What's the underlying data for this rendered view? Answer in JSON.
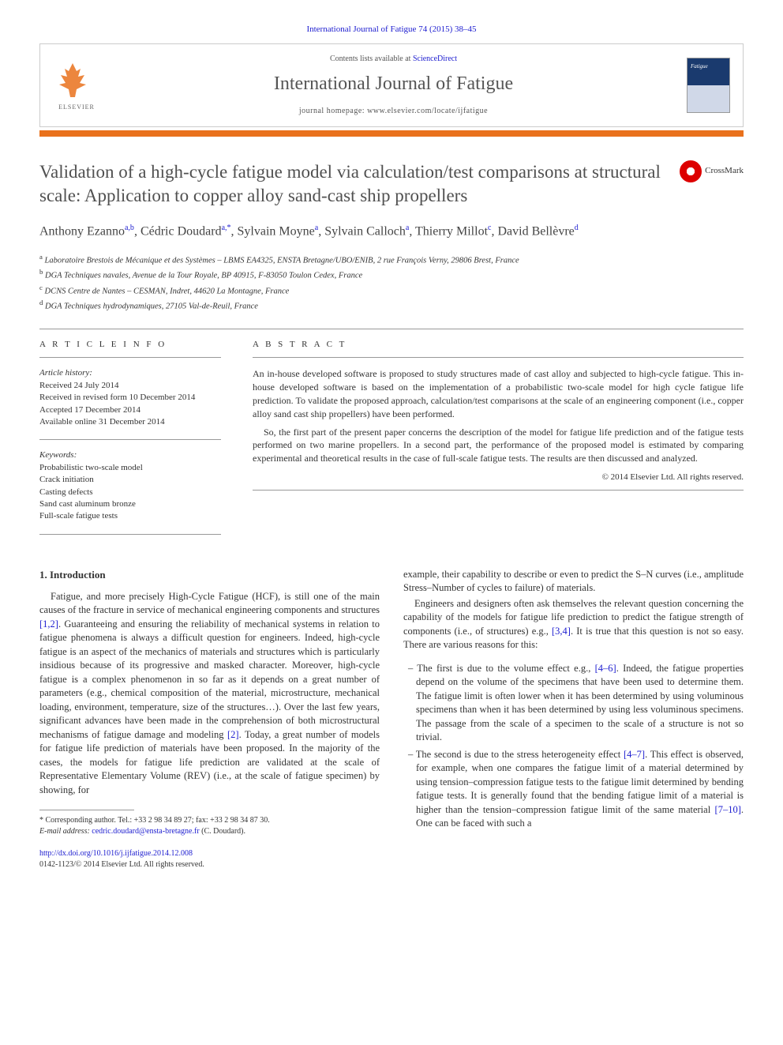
{
  "header": {
    "journal_ref": "International Journal of Fatigue 74 (2015) 38–45",
    "contents_prefix": "Contents lists available at ",
    "contents_link": "ScienceDirect",
    "journal_name": "International Journal of Fatigue",
    "homepage_prefix": "journal homepage: ",
    "homepage_url": "www.elsevier.com/locate/ijfatigue",
    "elsevier_label": "ELSEVIER"
  },
  "crossmark_label": "CrossMark",
  "title": "Validation of a high-cycle fatigue model via calculation/test comparisons at structural scale: Application to copper alloy sand-cast ship propellers",
  "authors_html": "Anthony Ezanno",
  "authors": [
    {
      "name": "Anthony Ezanno",
      "sup": "a,b"
    },
    {
      "name": "Cédric Doudard",
      "sup": "a,*"
    },
    {
      "name": "Sylvain Moyne",
      "sup": "a"
    },
    {
      "name": "Sylvain Calloch",
      "sup": "a"
    },
    {
      "name": "Thierry Millot",
      "sup": "c"
    },
    {
      "name": "David Bellèvre",
      "sup": "d"
    }
  ],
  "affiliations": {
    "a": "Laboratoire Brestois de Mécanique et des Systèmes – LBMS EA4325, ENSTA Bretagne/UBO/ENIB, 2 rue François Verny, 29806 Brest, France",
    "b": "DGA Techniques navales, Avenue de la Tour Royale, BP 40915, F-83050 Toulon Cedex, France",
    "c": "DCNS Centre de Nantes – CESMAN, Indret, 44620 La Montagne, France",
    "d": "DGA Techniques hydrodynamiques, 27105 Val-de-Reuil, France"
  },
  "info": {
    "header": "A R T I C L E   I N F O",
    "history_label": "Article history:",
    "received": "Received 24 July 2014",
    "revised": "Received in revised form 10 December 2014",
    "accepted": "Accepted 17 December 2014",
    "online": "Available online 31 December 2014",
    "keywords_label": "Keywords:",
    "keywords": [
      "Probabilistic two-scale model",
      "Crack initiation",
      "Casting defects",
      "Sand cast aluminum bronze",
      "Full-scale fatigue tests"
    ]
  },
  "abstract": {
    "header": "A B S T R A C T",
    "p1": "An in-house developed software is proposed to study structures made of cast alloy and subjected to high-cycle fatigue. This in-house developed software is based on the implementation of a probabilistic two-scale model for high cycle fatigue life prediction. To validate the proposed approach, calculation/test comparisons at the scale of an engineering component (i.e., copper alloy sand cast ship propellers) have been performed.",
    "p2": "So, the first part of the present paper concerns the description of the model for fatigue life prediction and of the fatigue tests performed on two marine propellers. In a second part, the performance of the proposed model is estimated by comparing experimental and theoretical results in the case of full-scale fatigue tests. The results are then discussed and analyzed.",
    "copyright": "© 2014 Elsevier Ltd. All rights reserved."
  },
  "body": {
    "section1_head": "1. Introduction",
    "col1_p1a": "Fatigue, and more precisely High-Cycle Fatigue (HCF), is still one of the main causes of the fracture in service of mechanical engineering components and structures ",
    "ref12": "[1,2]",
    "col1_p1b": ". Guaranteeing and ensuring the reliability of mechanical systems in relation to fatigue phenomena is always a difficult question for engineers. Indeed, high-cycle fatigue is an aspect of the mechanics of materials and structures which is particularly insidious because of its progressive and masked character. Moreover, high-cycle fatigue is a complex phenomenon in so far as it depends on a great number of parameters (e.g., chemical composition of the material, microstructure, mechanical loading, environment, temperature, size of the structures…). Over the last few years, significant advances have been made in the comprehension of both microstructural mechanisms of fatigue damage and modeling ",
    "ref2": "[2]",
    "col1_p1c": ". Today, a great number of models for fatigue life prediction of materials have been proposed. In the majority of the cases, the models for fatigue life prediction are validated at the scale of Representative Elementary Volume (REV) (i.e., at the scale of fatigue specimen) by showing, for",
    "col2_p1": "example, their capability to describe or even to predict the S–N curves (i.e., amplitude Stress–Number of cycles to failure) of materials.",
    "col2_p2a": "Engineers and designers often ask themselves the relevant question concerning the capability of the models for fatigue life prediction to predict the fatigue strength of components (i.e., of structures) e.g., ",
    "ref34": "[3,4]",
    "col2_p2b": ". It is true that this question is not so easy. There are various reasons for this:",
    "bullet1a": "– The first is due to the volume effect e.g., ",
    "ref46": "[4–6]",
    "bullet1b": ". Indeed, the fatigue properties depend on the volume of the specimens that have been used to determine them. The fatigue limit is often lower when it has been determined by using voluminous specimens than when it has been determined by using less voluminous specimens. The passage from the scale of a specimen to the scale of a structure is not so trivial.",
    "bullet2a": "– The second is due to the stress heterogeneity effect ",
    "ref47": "[4–7]",
    "bullet2b": ". This effect is observed, for example, when one compares the fatigue limit of a material determined by using tension–compression fatigue tests to the fatigue limit determined by bending fatigue tests. It is generally found that the bending fatigue limit of a material is higher than the tension–compression fatigue limit of the same material ",
    "ref710": "[7–10]",
    "bullet2c": ". One can be faced with such a"
  },
  "footnote": {
    "corr": "* Corresponding author. Tel.: +33 2 98 34 89 27; fax: +33 2 98 34 87 30.",
    "email_label": "E-mail address: ",
    "email": "cedric.doudard@ensta-bretagne.fr",
    "email_suffix": " (C. Doudard)."
  },
  "doi": {
    "url": "http://dx.doi.org/10.1016/j.ijfatigue.2014.12.008",
    "issn": "0142-1123/© 2014 Elsevier Ltd. All rights reserved."
  },
  "colors": {
    "link": "#2020d0",
    "orange": "#e9711c",
    "text": "#333333",
    "title_gray": "#505050"
  }
}
